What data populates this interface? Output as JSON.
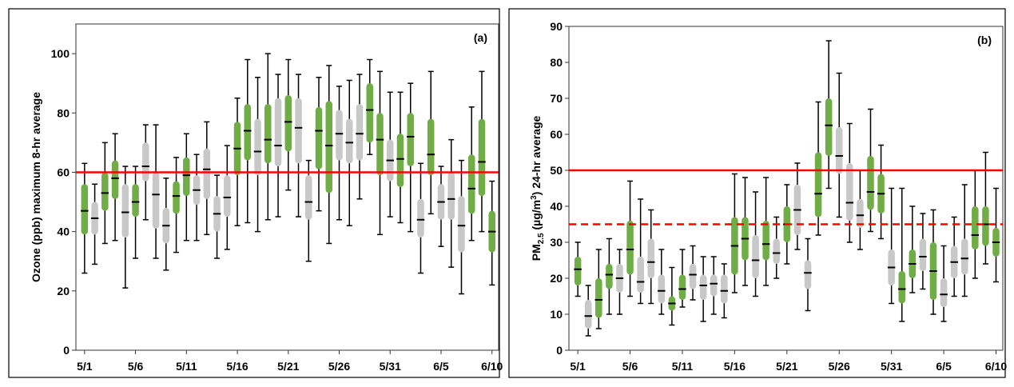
{
  "colors": {
    "green": "#70ad47",
    "gray": "#c8c8c8",
    "median": "#000000",
    "standard_line": "#ff0000"
  },
  "x_ticks": [
    "5/1",
    "5/6",
    "5/11",
    "5/16",
    "5/21",
    "5/26",
    "5/31",
    "6/5",
    "6/10"
  ],
  "chart_data": [
    {
      "type": "boxplot",
      "panel_label": "(a)",
      "ylabel": "Ozone (ppb) maximum 8-hr average",
      "ylim": [
        0,
        110
      ],
      "yticks": [
        0,
        20,
        40,
        60,
        80,
        100
      ],
      "x_tick_labels": [
        "5/1",
        "5/6",
        "5/11",
        "5/16",
        "5/21",
        "5/26",
        "5/31",
        "6/5",
        "6/10"
      ],
      "x_tick_every": 5,
      "reference_lines": [
        {
          "value": 60,
          "style": "solid"
        }
      ],
      "boxes": [
        {
          "date": "5/1",
          "min": 26,
          "q1": 39,
          "median": 47,
          "q3": 56,
          "max": 63,
          "highlight": true
        },
        {
          "date": "5/2",
          "min": 29,
          "q1": 39,
          "median": 44.5,
          "q3": 50,
          "max": 56,
          "highlight": false
        },
        {
          "date": "5/3",
          "min": 36,
          "q1": 47,
          "median": 53,
          "q3": 60,
          "max": 70,
          "highlight": true
        },
        {
          "date": "5/4",
          "min": 37,
          "q1": 51,
          "median": 58,
          "q3": 64,
          "max": 73,
          "highlight": true
        },
        {
          "date": "5/5",
          "min": 21,
          "q1": 38,
          "median": 46.5,
          "q3": 56,
          "max": 62,
          "highlight": false
        },
        {
          "date": "5/6",
          "min": 31,
          "q1": 45,
          "median": 50,
          "q3": 56,
          "max": 62,
          "highlight": true
        },
        {
          "date": "5/7",
          "min": 44,
          "q1": 57,
          "median": 62,
          "q3": 70,
          "max": 76,
          "highlight": false
        },
        {
          "date": "5/8",
          "min": 31,
          "q1": 41,
          "median": 52.5,
          "q3": 60,
          "max": 76,
          "highlight": false
        },
        {
          "date": "5/9",
          "min": 27,
          "q1": 36,
          "median": 42,
          "q3": 48,
          "max": 58,
          "highlight": false
        },
        {
          "date": "5/10",
          "min": 33,
          "q1": 46,
          "median": 52,
          "q3": 57,
          "max": 65,
          "highlight": true
        },
        {
          "date": "5/11",
          "min": 37,
          "q1": 52,
          "median": 59,
          "q3": 65,
          "max": 73,
          "highlight": true
        },
        {
          "date": "5/12",
          "min": 37,
          "q1": 49,
          "median": 54,
          "q3": 59,
          "max": 66,
          "highlight": false
        },
        {
          "date": "5/13",
          "min": 39,
          "q1": 51,
          "median": 61,
          "q3": 68,
          "max": 77,
          "highlight": false
        },
        {
          "date": "5/14",
          "min": 31,
          "q1": 40,
          "median": 46,
          "q3": 52,
          "max": 59,
          "highlight": false
        },
        {
          "date": "5/15",
          "min": 34,
          "q1": 45,
          "median": 51.5,
          "q3": 59,
          "max": 69,
          "highlight": false
        },
        {
          "date": "5/16",
          "min": 42,
          "q1": 59,
          "median": 68,
          "q3": 77,
          "max": 85,
          "highlight": true
        },
        {
          "date": "5/17",
          "min": 43,
          "q1": 64,
          "median": 74,
          "q3": 83,
          "max": 98,
          "highlight": true
        },
        {
          "date": "5/18",
          "min": 40,
          "q1": 59,
          "median": 67,
          "q3": 78,
          "max": 92,
          "highlight": false
        },
        {
          "date": "5/19",
          "min": 44,
          "q1": 63,
          "median": 71,
          "q3": 83,
          "max": 100,
          "highlight": true
        },
        {
          "date": "5/20",
          "min": 45,
          "q1": 62,
          "median": 69,
          "q3": 85,
          "max": 93,
          "highlight": false
        },
        {
          "date": "5/21",
          "min": 54,
          "q1": 67,
          "median": 77,
          "q3": 86,
          "max": 98,
          "highlight": true
        },
        {
          "date": "5/22",
          "min": 45,
          "q1": 63,
          "median": 75,
          "q3": 85,
          "max": 93,
          "highlight": false
        },
        {
          "date": "5/23",
          "min": 30,
          "q1": 44,
          "median": 50,
          "q3": 59,
          "max": 64,
          "highlight": false
        },
        {
          "date": "5/24",
          "min": 47,
          "q1": 61,
          "median": 74,
          "q3": 82,
          "max": 92,
          "highlight": true
        },
        {
          "date": "5/25",
          "min": 36,
          "q1": 53,
          "median": 69,
          "q3": 84,
          "max": 96,
          "highlight": true
        },
        {
          "date": "5/26",
          "min": 44,
          "q1": 64,
          "median": 73,
          "q3": 81,
          "max": 89,
          "highlight": false
        },
        {
          "date": "5/27",
          "min": 42,
          "q1": 63,
          "median": 70,
          "q3": 78,
          "max": 91,
          "highlight": false
        },
        {
          "date": "5/28",
          "min": 51,
          "q1": 64,
          "median": 73,
          "q3": 83,
          "max": 93,
          "highlight": false
        },
        {
          "date": "5/29",
          "min": 66,
          "q1": 70,
          "median": 81,
          "q3": 90,
          "max": 98,
          "highlight": true
        },
        {
          "date": "5/30",
          "min": 39,
          "q1": 59,
          "median": 71,
          "q3": 80,
          "max": 94,
          "highlight": true
        },
        {
          "date": "5/31",
          "min": 45,
          "q1": 57,
          "median": 64,
          "q3": 71,
          "max": 87,
          "highlight": false
        },
        {
          "date": "6/1",
          "min": 43,
          "q1": 55,
          "median": 64.5,
          "q3": 73,
          "max": 87,
          "highlight": true
        },
        {
          "date": "6/2",
          "min": 40,
          "q1": 62,
          "median": 72,
          "q3": 80,
          "max": 90,
          "highlight": true
        },
        {
          "date": "6/3",
          "min": 26,
          "q1": 38,
          "median": 44,
          "q3": 51,
          "max": 63,
          "highlight": false
        },
        {
          "date": "6/4",
          "min": 46,
          "q1": 59,
          "median": 66,
          "q3": 78,
          "max": 94,
          "highlight": true
        },
        {
          "date": "6/5",
          "min": 35,
          "q1": 44,
          "median": 50,
          "q3": 56,
          "max": 62,
          "highlight": false
        },
        {
          "date": "6/6",
          "min": 28,
          "q1": 44,
          "median": 51,
          "q3": 60,
          "max": 71,
          "highlight": false
        },
        {
          "date": "6/7",
          "min": 19,
          "q1": 33,
          "median": 42,
          "q3": 52,
          "max": 64,
          "highlight": false
        },
        {
          "date": "6/8",
          "min": 37,
          "q1": 46,
          "median": 54.5,
          "q3": 66,
          "max": 82,
          "highlight": true
        },
        {
          "date": "6/9",
          "min": 40,
          "q1": 52,
          "median": 63.5,
          "q3": 78,
          "max": 94,
          "highlight": true
        },
        {
          "date": "6/10",
          "min": 22,
          "q1": 33,
          "median": 40,
          "q3": 47,
          "max": 57,
          "highlight": true
        }
      ]
    },
    {
      "type": "boxplot",
      "panel_label": "(b)",
      "ylabel_main": "PM",
      "ylabel_sub": "2.5",
      "ylabel_rest": " (µg/m",
      "ylabel_sup": "3",
      "ylabel_tail": ") 24-hr average",
      "ylim": [
        0,
        90
      ],
      "yticks": [
        0,
        10,
        20,
        30,
        40,
        50,
        60,
        70,
        80,
        90
      ],
      "x_tick_labels": [
        "5/1",
        "5/6",
        "5/11",
        "5/16",
        "5/21",
        "5/26",
        "5/31",
        "6/5",
        "6/10"
      ],
      "x_tick_every": 5,
      "reference_lines": [
        {
          "value": 50,
          "style": "solid"
        },
        {
          "value": 35,
          "style": "dashed"
        }
      ],
      "boxes": [
        {
          "date": "5/1",
          "min": 15,
          "q1": 18,
          "median": 22.5,
          "q3": 26,
          "max": 30,
          "highlight": true
        },
        {
          "date": "5/2",
          "min": 4,
          "q1": 6,
          "median": 9.5,
          "q3": 14,
          "max": 18,
          "highlight": false
        },
        {
          "date": "5/3",
          "min": 6,
          "q1": 9,
          "median": 14,
          "q3": 20,
          "max": 28,
          "highlight": true
        },
        {
          "date": "5/4",
          "min": 10,
          "q1": 17,
          "median": 21,
          "q3": 24,
          "max": 31,
          "highlight": true
        },
        {
          "date": "5/5",
          "min": 10,
          "q1": 16,
          "median": 20,
          "q3": 24,
          "max": 28,
          "highlight": false
        },
        {
          "date": "5/6",
          "min": 15,
          "q1": 21,
          "median": 28,
          "q3": 36,
          "max": 47,
          "highlight": true
        },
        {
          "date": "5/7",
          "min": 13,
          "q1": 16,
          "median": 19,
          "q3": 26,
          "max": 42,
          "highlight": false
        },
        {
          "date": "5/8",
          "min": 13,
          "q1": 20,
          "median": 24.5,
          "q3": 31,
          "max": 39,
          "highlight": false
        },
        {
          "date": "5/9",
          "min": 10,
          "q1": 13,
          "median": 16.5,
          "q3": 21,
          "max": 28,
          "highlight": false
        },
        {
          "date": "5/10",
          "min": 7,
          "q1": 11,
          "median": 13,
          "q3": 15,
          "max": 23,
          "highlight": true
        },
        {
          "date": "5/11",
          "min": 12,
          "q1": 14,
          "median": 17,
          "q3": 21,
          "max": 28,
          "highlight": true
        },
        {
          "date": "5/12",
          "min": 14,
          "q1": 17,
          "median": 21,
          "q3": 24,
          "max": 29,
          "highlight": false
        },
        {
          "date": "5/13",
          "min": 8,
          "q1": 14,
          "median": 18,
          "q3": 21,
          "max": 26,
          "highlight": false
        },
        {
          "date": "5/14",
          "min": 10,
          "q1": 15,
          "median": 18.5,
          "q3": 21,
          "max": 26,
          "highlight": false
        },
        {
          "date": "5/15",
          "min": 9,
          "q1": 13,
          "median": 16.5,
          "q3": 21,
          "max": 24,
          "highlight": false
        },
        {
          "date": "5/16",
          "min": 16,
          "q1": 21,
          "median": 29,
          "q3": 37,
          "max": 49,
          "highlight": true
        },
        {
          "date": "5/17",
          "min": 18,
          "q1": 25,
          "median": 31,
          "q3": 37,
          "max": 48,
          "highlight": true
        },
        {
          "date": "5/18",
          "min": 15,
          "q1": 20,
          "median": 25,
          "q3": 32,
          "max": 44,
          "highlight": false
        },
        {
          "date": "5/19",
          "min": 18,
          "q1": 25,
          "median": 29.5,
          "q3": 36,
          "max": 48,
          "highlight": true
        },
        {
          "date": "5/20",
          "min": 20,
          "q1": 24,
          "median": 27,
          "q3": 31,
          "max": 37,
          "highlight": false
        },
        {
          "date": "5/21",
          "min": 24,
          "q1": 30,
          "median": 35,
          "q3": 40,
          "max": 46,
          "highlight": true
        },
        {
          "date": "5/22",
          "min": 28,
          "q1": 32,
          "median": 39,
          "q3": 46,
          "max": 52,
          "highlight": false
        },
        {
          "date": "5/23",
          "min": 11,
          "q1": 17,
          "median": 21.5,
          "q3": 25,
          "max": 31,
          "highlight": false
        },
        {
          "date": "5/24",
          "min": 32,
          "q1": 37,
          "median": 43.5,
          "q3": 55,
          "max": 69,
          "highlight": true
        },
        {
          "date": "5/25",
          "min": 45,
          "q1": 54,
          "median": 62.5,
          "q3": 70,
          "max": 86,
          "highlight": true
        },
        {
          "date": "5/26",
          "min": 37,
          "q1": 49,
          "median": 54,
          "q3": 62,
          "max": 77,
          "highlight": false
        },
        {
          "date": "5/27",
          "min": 30,
          "q1": 36,
          "median": 41,
          "q3": 52,
          "max": 63,
          "highlight": false
        },
        {
          "date": "5/28",
          "min": 28,
          "q1": 34,
          "median": 37.5,
          "q3": 42,
          "max": 50,
          "highlight": false
        },
        {
          "date": "5/29",
          "min": 33,
          "q1": 39,
          "median": 44,
          "q3": 54,
          "max": 67,
          "highlight": true
        },
        {
          "date": "5/30",
          "min": 31,
          "q1": 38,
          "median": 43.5,
          "q3": 49,
          "max": 57,
          "highlight": true
        },
        {
          "date": "5/31",
          "min": 13,
          "q1": 18,
          "median": 23,
          "q3": 28,
          "max": 45,
          "highlight": false
        },
        {
          "date": "6/1",
          "min": 8,
          "q1": 13,
          "median": 17,
          "q3": 22,
          "max": 45,
          "highlight": true
        },
        {
          "date": "6/2",
          "min": 16,
          "q1": 20,
          "median": 24,
          "q3": 28,
          "max": 40,
          "highlight": true
        },
        {
          "date": "6/3",
          "min": 17,
          "q1": 22,
          "median": 26,
          "q3": 31,
          "max": 38,
          "highlight": false
        },
        {
          "date": "6/4",
          "min": 10,
          "q1": 14,
          "median": 22,
          "q3": 30,
          "max": 39,
          "highlight": true
        },
        {
          "date": "6/5",
          "min": 8,
          "q1": 12,
          "median": 15.5,
          "q3": 20,
          "max": 29,
          "highlight": false
        },
        {
          "date": "6/6",
          "min": 15,
          "q1": 20,
          "median": 24.5,
          "q3": 29,
          "max": 37,
          "highlight": false
        },
        {
          "date": "6/7",
          "min": 15,
          "q1": 21,
          "median": 25.5,
          "q3": 31,
          "max": 46,
          "highlight": false
        },
        {
          "date": "6/8",
          "min": 20,
          "q1": 28,
          "median": 32,
          "q3": 40,
          "max": 50,
          "highlight": true
        },
        {
          "date": "6/9",
          "min": 24,
          "q1": 29,
          "median": 35,
          "q3": 40,
          "max": 55,
          "highlight": true
        },
        {
          "date": "6/10",
          "min": 19,
          "q1": 26,
          "median": 30,
          "q3": 34,
          "max": 45,
          "highlight": true
        }
      ]
    }
  ]
}
